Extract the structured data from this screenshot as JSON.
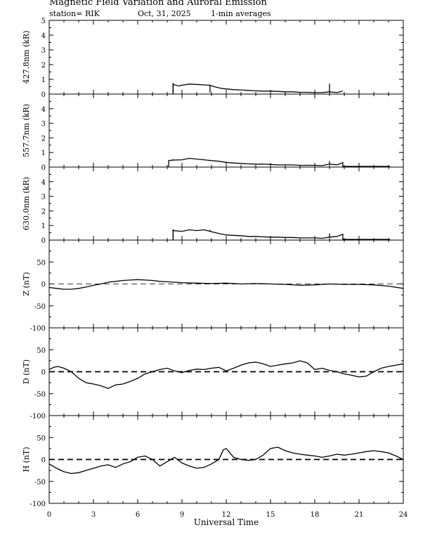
{
  "header": {
    "title": "Magnetic Field Variation and Auroral Emission",
    "station": "station= RIK",
    "date": "Oct, 31, 2025",
    "averaging": "1-min averages"
  },
  "chart_data": {
    "type": "line",
    "xlabel": "Universal Time",
    "xlim": [
      0,
      24
    ],
    "xticks": [
      0,
      3,
      6,
      9,
      12,
      15,
      18,
      21,
      24
    ],
    "xtick_labels": [
      "0",
      "3",
      "6",
      "9",
      "12",
      "15",
      "18",
      "21",
      "24"
    ],
    "panels": [
      {
        "ylabel": "427.8nm (kR)",
        "ylim": [
          0,
          5
        ],
        "yticks": [
          0,
          1,
          2,
          3,
          4,
          5
        ],
        "ytick_labels": [
          "0",
          "1",
          "2",
          "3",
          "4",
          "5"
        ],
        "zero_line": "none",
        "series": {
          "x": [
            8.4,
            8.4,
            8.8,
            9.0,
            9.5,
            10.0,
            10.5,
            10.9,
            11.2,
            11.6,
            12.0,
            12.5,
            13.0,
            13.5,
            14.0,
            14.5,
            15.0,
            15.5,
            16.0,
            16.5,
            17.0,
            17.5,
            18.0,
            18.5,
            19.0,
            19.5,
            19.9
          ],
          "y": [
            0.0,
            0.65,
            0.55,
            0.6,
            0.68,
            0.65,
            0.62,
            0.6,
            0.5,
            0.4,
            0.35,
            0.3,
            0.28,
            0.25,
            0.22,
            0.2,
            0.2,
            0.18,
            0.15,
            0.15,
            0.12,
            0.12,
            0.1,
            0.1,
            0.15,
            0.1,
            0.2
          ]
        },
        "spikes": [
          {
            "x": 8.4,
            "y": 0.75
          },
          {
            "x": 10.9,
            "y": 0.1
          },
          {
            "x": 19.0,
            "y": 0.7
          }
        ]
      },
      {
        "ylabel": "557.7nm (kR)",
        "ylim": [
          0,
          5
        ],
        "yticks": [
          0,
          1,
          2,
          3,
          4
        ],
        "ytick_labels": [
          "0",
          "1",
          "2",
          "3",
          "4"
        ],
        "zero_line": "none",
        "series": {
          "x": [
            8.1,
            8.1,
            8.5,
            9.0,
            9.5,
            10.0,
            10.5,
            10.9,
            11.5,
            12.0,
            12.5,
            13.0,
            13.5,
            14.0,
            14.5,
            15.0,
            15.5,
            16.0,
            16.5,
            17.0,
            17.5,
            18.0,
            18.5,
            19.0,
            19.5,
            19.9,
            19.9,
            21.0,
            22.0,
            23.1
          ],
          "y": [
            0.0,
            0.45,
            0.48,
            0.5,
            0.6,
            0.55,
            0.5,
            0.45,
            0.4,
            0.32,
            0.28,
            0.25,
            0.22,
            0.2,
            0.2,
            0.18,
            0.15,
            0.15,
            0.15,
            0.12,
            0.12,
            0.12,
            0.1,
            0.2,
            0.15,
            0.3,
            0.05,
            0.05,
            0.05,
            0.05
          ]
        },
        "spikes": [
          {
            "x": 8.4,
            "y": 0.55
          },
          {
            "x": 10.9,
            "y": 0.5
          },
          {
            "x": 19.0,
            "y": 0.4
          }
        ]
      },
      {
        "ylabel": "630.0nm (kR)",
        "ylim": [
          0,
          5
        ],
        "yticks": [
          0,
          1,
          2,
          3,
          4
        ],
        "ytick_labels": [
          "0",
          "1",
          "2",
          "3",
          "4"
        ],
        "zero_line": "none",
        "series": {
          "x": [
            8.4,
            8.4,
            9.0,
            9.5,
            10.0,
            10.5,
            10.9,
            11.5,
            12.0,
            12.5,
            13.0,
            13.5,
            14.0,
            14.5,
            15.0,
            15.5,
            16.0,
            16.5,
            17.0,
            17.5,
            18.0,
            18.5,
            19.0,
            19.5,
            19.9,
            19.9,
            21.0,
            22.0,
            23.1
          ],
          "y": [
            0.0,
            0.65,
            0.6,
            0.7,
            0.65,
            0.7,
            0.6,
            0.45,
            0.35,
            0.32,
            0.3,
            0.25,
            0.25,
            0.22,
            0.2,
            0.2,
            0.18,
            0.18,
            0.15,
            0.15,
            0.15,
            0.12,
            0.2,
            0.25,
            0.4,
            0.05,
            0.05,
            0.05,
            0.05
          ]
        },
        "spikes": [
          {
            "x": 8.4,
            "y": 0.75
          },
          {
            "x": 10.9,
            "y": 0.7
          },
          {
            "x": 19.0,
            "y": 0.45
          }
        ]
      },
      {
        "ylabel": "Z (nT)",
        "ylim": [
          -100,
          100
        ],
        "yticks": [
          -100,
          -50,
          0,
          50
        ],
        "ytick_labels": [
          "-100",
          "-50",
          "0",
          "50"
        ],
        "zero_line": "thin",
        "series": {
          "x": [
            0,
            0.5,
            1,
            1.5,
            2,
            2.5,
            3,
            3.5,
            4,
            4.5,
            5,
            5.5,
            6,
            6.5,
            7,
            7.5,
            8,
            8.5,
            9,
            10,
            11,
            12,
            13,
            14,
            15,
            16,
            17,
            18,
            19,
            20,
            21,
            22,
            23,
            24
          ],
          "y": [
            -8,
            -10,
            -12,
            -12,
            -10,
            -7,
            -3,
            0,
            4,
            6,
            8,
            9,
            10,
            9,
            8,
            6,
            5,
            4,
            3,
            2,
            1,
            2,
            0,
            1,
            0,
            -1,
            -3,
            -2,
            0,
            -1,
            -1,
            -2,
            -5,
            -10
          ]
        },
        "spikes": []
      },
      {
        "ylabel": "D (nT)",
        "ylim": [
          -100,
          100
        ],
        "yticks": [
          -100,
          -50,
          0,
          50
        ],
        "ytick_labels": [
          "-100",
          "-50",
          "0",
          "50"
        ],
        "zero_line": "dashed",
        "series": {
          "x": [
            0,
            0.3,
            0.6,
            1,
            1.5,
            2,
            2.5,
            3,
            3.5,
            4,
            4.5,
            5,
            5.5,
            6,
            6.5,
            7,
            7.5,
            8,
            8.5,
            9,
            9.5,
            10,
            10.5,
            11,
            11.5,
            12,
            12.5,
            13,
            13.5,
            14,
            14.5,
            15,
            15.5,
            16,
            16.5,
            17,
            17.5,
            18,
            18.5,
            19,
            19.5,
            20,
            20.5,
            21,
            21.5,
            22,
            22.5,
            23,
            23.5,
            24
          ],
          "y": [
            5,
            10,
            12,
            8,
            0,
            -15,
            -25,
            -28,
            -32,
            -38,
            -30,
            -28,
            -22,
            -15,
            -5,
            0,
            5,
            8,
            2,
            -2,
            3,
            6,
            5,
            8,
            10,
            2,
            8,
            15,
            20,
            22,
            18,
            12,
            15,
            18,
            20,
            25,
            20,
            5,
            8,
            3,
            0,
            -5,
            -8,
            -12,
            -10,
            0,
            8,
            12,
            15,
            18
          ]
        },
        "spikes": []
      },
      {
        "ylabel": "H (nT)",
        "ylim": [
          -100,
          100
        ],
        "yticks": [
          -100,
          -50,
          0,
          50
        ],
        "ytick_labels": [
          "-100",
          "-50",
          "0",
          "50"
        ],
        "zero_line": "dashed",
        "series": {
          "x": [
            0,
            0.5,
            1,
            1.5,
            2,
            2.5,
            3,
            3.5,
            4,
            4.5,
            5,
            5.5,
            6,
            6.5,
            7,
            7.5,
            8,
            8.5,
            9,
            9.5,
            10,
            10.5,
            11,
            11.5,
            11.8,
            12,
            12.5,
            13,
            13.5,
            14,
            14.5,
            15,
            15.5,
            16,
            16.5,
            17,
            17.5,
            18,
            18.5,
            19,
            19.5,
            20,
            20.5,
            21,
            21.5,
            22,
            22.5,
            23,
            23.5,
            24
          ],
          "y": [
            -10,
            -20,
            -28,
            -32,
            -30,
            -25,
            -20,
            -15,
            -12,
            -18,
            -10,
            -5,
            5,
            8,
            0,
            -15,
            -5,
            5,
            -8,
            -15,
            -20,
            -18,
            -10,
            0,
            22,
            25,
            5,
            0,
            -2,
            0,
            10,
            25,
            28,
            20,
            15,
            12,
            10,
            8,
            5,
            8,
            12,
            10,
            12,
            15,
            18,
            20,
            18,
            15,
            8,
            0
          ]
        },
        "spikes": []
      }
    ]
  }
}
